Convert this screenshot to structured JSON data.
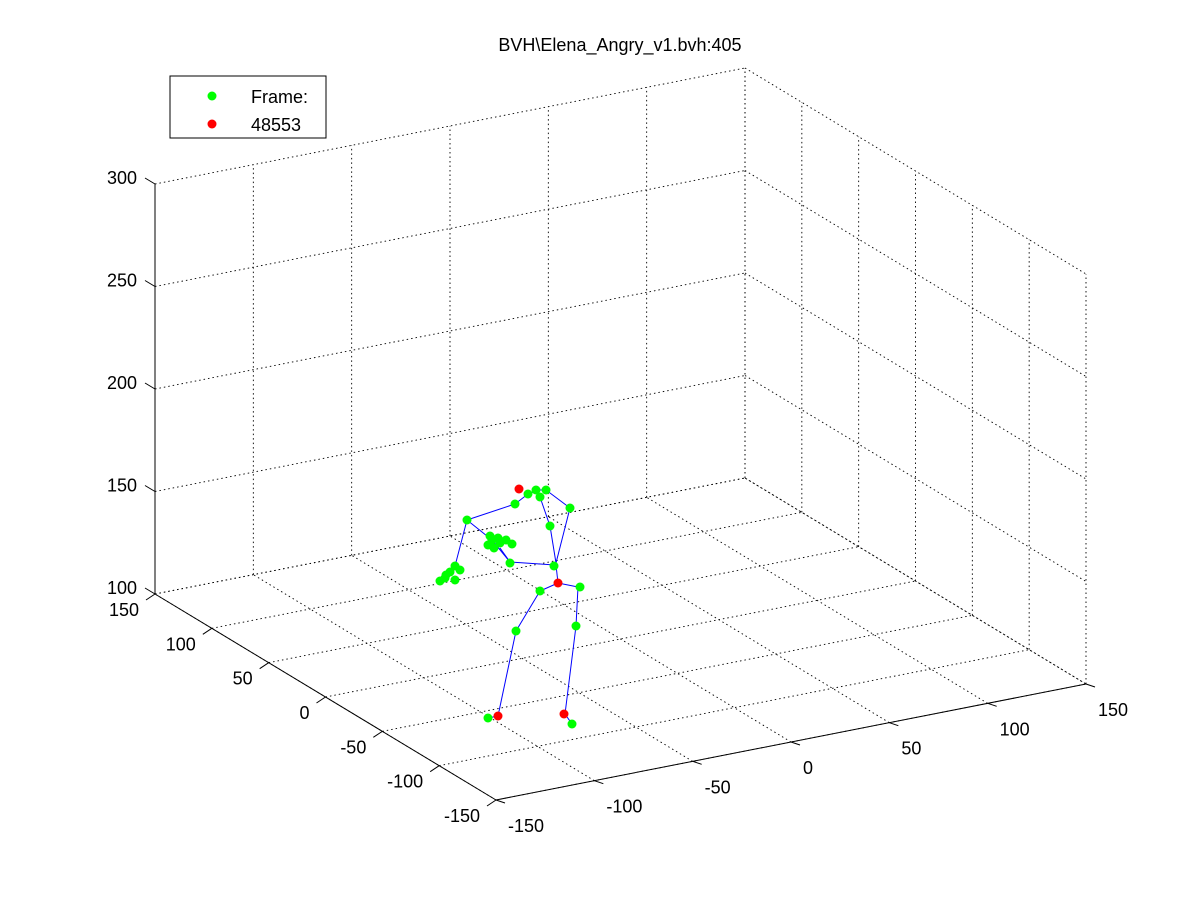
{
  "chart_data": {
    "type": "scatter",
    "projection": "3d",
    "title": "BVH\\Elena_Angry_v1.bvh:405",
    "grid": true,
    "xlim": [
      -150,
      150
    ],
    "ylim": [
      -150,
      150
    ],
    "zlim": [
      100,
      300
    ],
    "x_ticks": [
      "-150",
      "-100",
      "-50",
      "0",
      "50",
      "100",
      "150"
    ],
    "y_ticks": [
      "-150",
      "-100",
      "-50",
      "0",
      "50",
      "100",
      "150"
    ],
    "z_ticks": [
      "100",
      "150",
      "200",
      "250",
      "300"
    ],
    "legend": {
      "placement": "top-left",
      "entries": [
        {
          "label": "Frame:",
          "color": "#00ff00"
        },
        {
          "label": "48553",
          "color": "#ff0000"
        }
      ]
    },
    "colors": {
      "joint": "#00ff00",
      "highlight": "#ff0000",
      "bone": "#0000ff",
      "grid": "#000000"
    }
  }
}
